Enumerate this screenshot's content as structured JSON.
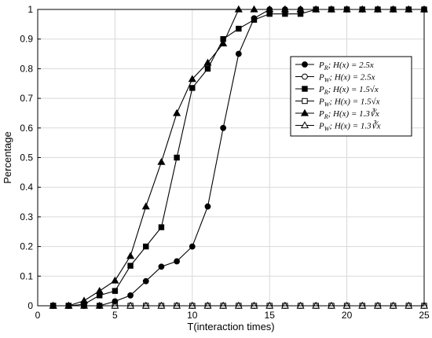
{
  "chart_data": {
    "type": "line",
    "title": "",
    "xlabel": "T(interaction times)",
    "ylabel": "Percentage",
    "xlim": [
      0,
      25
    ],
    "ylim": [
      0,
      1
    ],
    "xticks": [
      "0",
      "5",
      "10",
      "15",
      "20",
      "25"
    ],
    "yticks": [
      "0",
      "0.1",
      "0.2",
      "0.3",
      "0.4",
      "0.5",
      "0.6",
      "0.7",
      "0.8",
      "0.9",
      "1"
    ],
    "grid": true,
    "legend_position": "top-right",
    "x": [
      1,
      2,
      3,
      4,
      5,
      6,
      7,
      8,
      9,
      10,
      11,
      12,
      13,
      14,
      15,
      16,
      17,
      18,
      19,
      20,
      21,
      22,
      23,
      24,
      25
    ],
    "series": [
      {
        "name": "P_R;  H(x) = 2.5x",
        "marker": "circle",
        "filled": true,
        "values": [
          0,
          0,
          0,
          0,
          0.015,
          0.035,
          0.083,
          0.132,
          0.15,
          0.2,
          0.335,
          0.6,
          0.85,
          0.97,
          1,
          1,
          1,
          1,
          1,
          1,
          1,
          1,
          1,
          1,
          1
        ]
      },
      {
        "name": "P_W;  H(x) = 2.5x",
        "marker": "circle",
        "filled": false,
        "values": [
          0,
          0,
          0,
          0,
          0,
          0,
          0,
          0,
          0,
          0,
          0,
          0,
          0,
          0,
          0,
          0,
          0,
          0,
          0,
          0,
          0,
          0,
          0,
          0,
          0
        ]
      },
      {
        "name": "P_R;  H(x) = 1.5√x",
        "marker": "square",
        "filled": true,
        "values": [
          0,
          0,
          0.005,
          0.035,
          0.05,
          0.135,
          0.2,
          0.265,
          0.5,
          0.735,
          0.8,
          0.9,
          0.935,
          0.965,
          0.985,
          0.985,
          0.985,
          1,
          1,
          1,
          1,
          1,
          1,
          1,
          1
        ]
      },
      {
        "name": "P_W;  H(x) = 1.5√x",
        "marker": "square",
        "filled": false,
        "values": [
          0,
          0,
          0,
          0,
          0,
          0,
          0,
          0,
          0,
          0,
          0,
          0,
          0,
          0,
          0,
          0,
          0,
          0,
          0,
          0,
          0,
          0,
          0,
          0,
          0
        ]
      },
      {
        "name": "P_R;  H(x) = 1.3∛x",
        "marker": "triangle",
        "filled": true,
        "values": [
          0,
          0,
          0.017,
          0.05,
          0.085,
          0.168,
          0.335,
          0.485,
          0.65,
          0.765,
          0.82,
          0.885,
          1,
          1,
          1,
          1,
          1,
          1,
          1,
          1,
          1,
          1,
          1,
          1,
          1
        ]
      },
      {
        "name": "P_W;  H(x) = 1.3∛x",
        "marker": "triangle",
        "filled": false,
        "values": [
          0,
          0,
          0,
          0,
          0,
          0,
          0,
          0,
          0,
          0,
          0,
          0,
          0,
          0,
          0,
          0,
          0,
          0,
          0,
          0,
          0,
          0,
          0,
          0,
          0
        ]
      }
    ]
  }
}
